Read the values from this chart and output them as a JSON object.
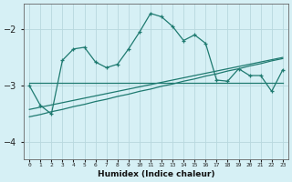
{
  "xlabel": "Humidex (Indice chaleur)",
  "bg_color": "#d6f0f5",
  "grid_color": "#b8d8de",
  "line_color": "#1e7a70",
  "x": [
    0,
    1,
    2,
    3,
    4,
    5,
    6,
    7,
    8,
    9,
    10,
    11,
    12,
    13,
    14,
    15,
    16,
    17,
    18,
    19,
    20,
    21,
    22,
    23
  ],
  "y_main": [
    -3.0,
    -3.35,
    -3.5,
    -2.55,
    -2.35,
    -2.32,
    -2.58,
    -2.68,
    -2.62,
    -2.35,
    -2.05,
    -1.72,
    -1.78,
    -1.95,
    -2.2,
    -2.1,
    -2.25,
    -2.9,
    -2.92,
    -2.7,
    -2.82,
    -2.82,
    -3.1,
    -2.72
  ],
  "y_flat": [
    -2.95,
    -2.95,
    -2.95,
    -2.95,
    -2.95,
    -2.95,
    -2.95,
    -2.95,
    -2.95,
    -2.95,
    -2.95,
    -2.95,
    -2.95,
    -2.95,
    -2.95,
    -2.95,
    -2.95,
    -2.95,
    -2.95,
    -2.95,
    -2.95,
    -2.95,
    -2.95,
    -2.95
  ],
  "y_regr1": [
    -3.55,
    -3.51,
    -3.46,
    -3.42,
    -3.37,
    -3.33,
    -3.28,
    -3.24,
    -3.19,
    -3.15,
    -3.1,
    -3.06,
    -3.01,
    -2.97,
    -2.92,
    -2.88,
    -2.83,
    -2.79,
    -2.74,
    -2.7,
    -2.65,
    -2.61,
    -2.56,
    -2.52
  ],
  "y_regr2": [
    -3.42,
    -3.38,
    -3.34,
    -3.3,
    -3.26,
    -3.22,
    -3.18,
    -3.14,
    -3.1,
    -3.06,
    -3.02,
    -2.98,
    -2.94,
    -2.9,
    -2.86,
    -2.82,
    -2.78,
    -2.74,
    -2.7,
    -2.66,
    -2.62,
    -2.58,
    -2.54,
    -2.5
  ],
  "ylim": [
    -4.3,
    -1.55
  ],
  "yticks": [
    -4,
    -3,
    -2
  ],
  "xlim": [
    -0.5,
    23.5
  ],
  "xtick_labels": [
    "0",
    "1",
    "2",
    "3",
    "4",
    "5",
    "6",
    "7",
    "8",
    "9",
    "10",
    "11",
    "12",
    "13",
    "14",
    "15",
    "16",
    "17",
    "18",
    "19",
    "20",
    "21",
    "22",
    "23"
  ]
}
